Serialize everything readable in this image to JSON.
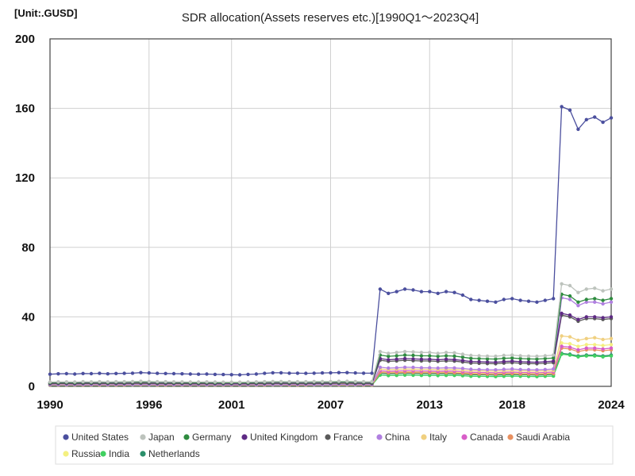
{
  "chart_data": {
    "type": "line",
    "title": "SDR allocation(Assets reserves etc.)[1990Q1～2023Q4]",
    "unit_label": "[Unit:.GUSD]",
    "xlabel": "",
    "ylabel": "",
    "xlim": [
      1990,
      2024
    ],
    "ylim": [
      0,
      200
    ],
    "x_ticks": [
      "1990",
      "1996",
      "2001",
      "2007",
      "2013",
      "2018",
      "2024"
    ],
    "y_ticks": [
      "0",
      "40",
      "80",
      "120",
      "160",
      "200"
    ],
    "grid": true,
    "legend_position": "bottom",
    "x": [
      1990,
      1990.5,
      1991,
      1991.5,
      1992,
      1992.5,
      1993,
      1993.5,
      1994,
      1994.5,
      1995,
      1995.5,
      1996,
      1996.5,
      1997,
      1997.5,
      1998,
      1998.5,
      1999,
      1999.5,
      2000,
      2000.5,
      2001,
      2001.5,
      2002,
      2002.5,
      2003,
      2003.5,
      2004,
      2004.5,
      2005,
      2005.5,
      2006,
      2006.5,
      2007,
      2007.5,
      2008,
      2008.5,
      2009,
      2009.5,
      2010,
      2010.5,
      2011,
      2011.5,
      2012,
      2012.5,
      2013,
      2013.5,
      2014,
      2014.5,
      2015,
      2015.5,
      2016,
      2016.5,
      2017,
      2017.5,
      2018,
      2018.5,
      2019,
      2019.5,
      2020,
      2020.5,
      2021,
      2021.5,
      2022,
      2022.5,
      2023,
      2023.5,
      2024
    ],
    "series": [
      {
        "name": "United States",
        "color": "#4b4f9e",
        "values": [
          7.0,
          7.2,
          7.3,
          7.1,
          7.4,
          7.3,
          7.5,
          7.2,
          7.4,
          7.5,
          7.6,
          7.9,
          7.7,
          7.5,
          7.4,
          7.3,
          7.2,
          7.1,
          7.0,
          7.1,
          6.9,
          6.8,
          6.7,
          6.6,
          6.9,
          7.1,
          7.5,
          7.8,
          7.8,
          7.6,
          7.6,
          7.5,
          7.6,
          7.7,
          7.8,
          7.9,
          7.9,
          7.7,
          7.6,
          7.6,
          56.0,
          53.5,
          54.5,
          56.0,
          55.5,
          54.5,
          54.5,
          53.5,
          54.5,
          54.0,
          52.5,
          50.0,
          49.5,
          49.0,
          48.5,
          50.0,
          50.5,
          49.5,
          49.0,
          48.5,
          49.5,
          50.5,
          161.0,
          159.0,
          148.0,
          153.5,
          155.0,
          152.0,
          154.5
        ]
      },
      {
        "name": "Japan",
        "color": "#bdc3bd",
        "values": [
          2.5,
          2.6,
          2.6,
          2.5,
          2.7,
          2.6,
          2.7,
          2.6,
          2.7,
          2.7,
          2.8,
          2.9,
          2.8,
          2.7,
          2.7,
          2.6,
          2.6,
          2.5,
          2.5,
          2.6,
          2.5,
          2.4,
          2.4,
          2.4,
          2.5,
          2.6,
          2.7,
          2.8,
          2.8,
          2.7,
          2.7,
          2.7,
          2.8,
          2.8,
          2.8,
          2.9,
          2.9,
          2.8,
          2.7,
          2.7,
          20.0,
          19.0,
          19.5,
          20.0,
          19.8,
          19.5,
          19.5,
          19.0,
          19.5,
          19.3,
          18.5,
          17.8,
          17.6,
          17.4,
          17.3,
          17.8,
          18.0,
          17.6,
          17.4,
          17.3,
          17.6,
          18.0,
          59.0,
          58.0,
          54.0,
          56.0,
          56.5,
          55.0,
          56.0
        ]
      },
      {
        "name": "Germany",
        "color": "#2e8b3f",
        "values": [
          2.2,
          2.3,
          2.3,
          2.2,
          2.4,
          2.3,
          2.4,
          2.3,
          2.4,
          2.4,
          2.5,
          2.6,
          2.5,
          2.4,
          2.4,
          2.3,
          2.3,
          2.2,
          2.2,
          2.3,
          2.2,
          2.1,
          2.1,
          2.1,
          2.2,
          2.3,
          2.4,
          2.5,
          2.5,
          2.4,
          2.4,
          2.4,
          2.5,
          2.5,
          2.5,
          2.6,
          2.6,
          2.5,
          2.4,
          2.4,
          18.0,
          17.3,
          17.6,
          18.0,
          17.8,
          17.6,
          17.6,
          17.3,
          17.6,
          17.4,
          16.8,
          16.1,
          16.0,
          15.8,
          15.7,
          16.1,
          16.3,
          16.0,
          15.8,
          15.7,
          16.0,
          16.3,
          53.0,
          52.0,
          48.5,
          50.0,
          50.5,
          49.5,
          50.5
        ]
      },
      {
        "name": "United Kingdom",
        "color": "#5e2a84",
        "values": [
          2.0,
          2.1,
          2.1,
          2.0,
          2.2,
          2.1,
          2.2,
          2.1,
          2.2,
          2.2,
          2.3,
          2.4,
          2.3,
          2.2,
          2.2,
          2.1,
          2.1,
          2.0,
          2.0,
          2.1,
          2.0,
          1.9,
          1.9,
          1.9,
          2.0,
          2.1,
          2.2,
          2.3,
          2.3,
          2.2,
          2.2,
          2.2,
          2.3,
          2.3,
          2.3,
          2.4,
          2.4,
          2.3,
          2.2,
          2.2,
          16.0,
          15.3,
          15.6,
          16.0,
          15.8,
          15.6,
          15.6,
          15.3,
          15.6,
          15.4,
          14.9,
          14.3,
          14.2,
          14.0,
          13.9,
          14.3,
          14.5,
          14.2,
          14.0,
          13.9,
          14.2,
          14.5,
          42.0,
          41.0,
          38.5,
          40.0,
          40.0,
          39.5,
          40.0
        ]
      },
      {
        "name": "France",
        "color": "#5a5a5a",
        "values": [
          1.5,
          1.6,
          1.6,
          1.5,
          1.6,
          1.6,
          1.6,
          1.6,
          1.6,
          1.6,
          1.7,
          1.8,
          1.7,
          1.6,
          1.6,
          1.6,
          1.6,
          1.5,
          1.5,
          1.6,
          1.5,
          1.5,
          1.5,
          1.5,
          1.5,
          1.6,
          1.6,
          1.7,
          1.7,
          1.6,
          1.6,
          1.6,
          1.7,
          1.7,
          1.7,
          1.8,
          1.8,
          1.7,
          1.6,
          1.6,
          15.0,
          14.4,
          14.6,
          15.0,
          14.8,
          14.6,
          14.6,
          14.4,
          14.6,
          14.5,
          14.0,
          13.4,
          13.3,
          13.1,
          13.0,
          13.4,
          13.6,
          13.3,
          13.1,
          13.0,
          13.3,
          13.6,
          41.0,
          40.0,
          37.5,
          39.0,
          39.0,
          38.5,
          39.0
        ]
      },
      {
        "name": "China",
        "color": "#b07fe0",
        "values": [
          0.9,
          0.9,
          0.9,
          0.9,
          1.0,
          0.9,
          1.0,
          0.9,
          1.0,
          1.0,
          1.0,
          1.1,
          1.0,
          1.0,
          1.0,
          0.9,
          0.9,
          0.9,
          0.9,
          0.9,
          0.9,
          0.9,
          0.9,
          0.9,
          0.9,
          0.9,
          1.0,
          1.0,
          1.0,
          1.0,
          1.0,
          1.0,
          1.0,
          1.0,
          1.0,
          1.1,
          1.1,
          1.0,
          1.0,
          1.0,
          11.0,
          10.5,
          10.7,
          11.0,
          10.9,
          10.7,
          10.7,
          10.5,
          10.7,
          10.6,
          10.3,
          9.8,
          9.7,
          9.6,
          9.5,
          9.8,
          10.0,
          9.7,
          9.6,
          9.5,
          9.7,
          10.0,
          51.0,
          50.0,
          46.5,
          48.5,
          48.5,
          47.5,
          48.5
        ]
      },
      {
        "name": "Italy",
        "color": "#f0d080",
        "values": [
          1.2,
          1.2,
          1.2,
          1.2,
          1.3,
          1.2,
          1.3,
          1.2,
          1.3,
          1.3,
          1.3,
          1.4,
          1.3,
          1.3,
          1.3,
          1.2,
          1.2,
          1.2,
          1.2,
          1.2,
          1.2,
          1.1,
          1.1,
          1.1,
          1.2,
          1.2,
          1.3,
          1.3,
          1.3,
          1.3,
          1.3,
          1.3,
          1.3,
          1.3,
          1.3,
          1.4,
          1.4,
          1.3,
          1.3,
          1.3,
          10.0,
          9.6,
          9.8,
          10.0,
          9.9,
          9.8,
          9.8,
          9.6,
          9.8,
          9.7,
          9.4,
          9.0,
          8.9,
          8.8,
          8.7,
          9.0,
          9.1,
          8.9,
          8.8,
          8.7,
          8.9,
          9.1,
          29.0,
          28.5,
          26.5,
          27.5,
          28.0,
          27.0,
          27.5
        ]
      },
      {
        "name": "Canada",
        "color": "#d85ec8",
        "values": [
          1.2,
          1.2,
          1.2,
          1.2,
          1.3,
          1.2,
          1.3,
          1.2,
          1.3,
          1.3,
          1.3,
          1.4,
          1.3,
          1.3,
          1.3,
          1.2,
          1.2,
          1.2,
          1.2,
          1.2,
          1.2,
          1.1,
          1.1,
          1.1,
          1.2,
          1.2,
          1.3,
          1.3,
          1.3,
          1.3,
          1.3,
          1.3,
          1.3,
          1.3,
          1.3,
          1.4,
          1.4,
          1.3,
          1.3,
          1.3,
          9.0,
          8.6,
          8.8,
          9.0,
          8.9,
          8.8,
          8.8,
          8.6,
          8.8,
          8.7,
          8.4,
          8.1,
          8.0,
          7.9,
          7.8,
          8.1,
          8.2,
          8.0,
          7.9,
          7.8,
          8.0,
          8.2,
          23.0,
          22.5,
          21.0,
          22.0,
          22.0,
          21.5,
          22.0
        ]
      },
      {
        "name": "Saudi Arabia",
        "color": "#e89060",
        "values": [
          0.7,
          0.7,
          0.7,
          0.7,
          0.7,
          0.7,
          0.7,
          0.7,
          0.7,
          0.7,
          0.8,
          0.8,
          0.8,
          0.7,
          0.7,
          0.7,
          0.7,
          0.7,
          0.7,
          0.7,
          0.7,
          0.7,
          0.7,
          0.7,
          0.7,
          0.7,
          0.7,
          0.8,
          0.8,
          0.7,
          0.7,
          0.7,
          0.8,
          0.8,
          0.8,
          0.8,
          0.8,
          0.8,
          0.7,
          0.7,
          8.0,
          7.7,
          7.8,
          8.0,
          7.9,
          7.8,
          7.8,
          7.7,
          7.8,
          7.7,
          7.5,
          7.2,
          7.1,
          7.0,
          6.9,
          7.2,
          7.3,
          7.1,
          7.0,
          6.9,
          7.1,
          7.3,
          22.0,
          21.5,
          20.0,
          21.0,
          21.0,
          20.5,
          21.0
        ]
      },
      {
        "name": "Russia",
        "color": "#f4f080",
        "values": [
          1.0,
          1.0,
          1.0,
          1.0,
          1.1,
          1.0,
          1.1,
          1.0,
          1.1,
          1.1,
          1.1,
          1.2,
          1.1,
          1.1,
          1.1,
          1.0,
          1.0,
          1.0,
          1.0,
          1.0,
          1.0,
          0.9,
          0.9,
          0.9,
          1.0,
          1.0,
          1.1,
          1.1,
          1.1,
          1.1,
          1.1,
          1.1,
          1.1,
          1.1,
          1.1,
          1.2,
          1.2,
          1.1,
          1.1,
          1.1,
          8.5,
          8.2,
          8.3,
          8.5,
          8.4,
          8.3,
          8.3,
          8.2,
          8.3,
          8.2,
          8.0,
          7.6,
          7.6,
          7.5,
          7.4,
          7.6,
          7.7,
          7.6,
          7.5,
          7.4,
          7.6,
          7.7,
          25.0,
          24.5,
          23.0,
          24.0,
          24.0,
          23.5,
          24.0
        ]
      },
      {
        "name": "India",
        "color": "#40d060",
        "values": [
          0.6,
          0.6,
          0.6,
          0.6,
          0.6,
          0.6,
          0.6,
          0.6,
          0.6,
          0.6,
          0.7,
          0.7,
          0.7,
          0.6,
          0.6,
          0.6,
          0.6,
          0.6,
          0.6,
          0.6,
          0.6,
          0.6,
          0.6,
          0.6,
          0.6,
          0.6,
          0.6,
          0.7,
          0.7,
          0.6,
          0.6,
          0.6,
          0.7,
          0.7,
          0.7,
          0.7,
          0.7,
          0.7,
          0.6,
          0.6,
          6.5,
          6.2,
          6.3,
          6.5,
          6.4,
          6.3,
          6.3,
          6.2,
          6.3,
          6.3,
          6.1,
          5.8,
          5.8,
          5.7,
          5.6,
          5.8,
          5.9,
          5.8,
          5.7,
          5.6,
          5.8,
          5.9,
          18.5,
          18.0,
          17.0,
          17.5,
          17.5,
          17.0,
          17.5
        ]
      },
      {
        "name": "Netherlands",
        "color": "#2a8f6a",
        "values": [
          1.3,
          1.3,
          1.3,
          1.3,
          1.4,
          1.3,
          1.4,
          1.3,
          1.4,
          1.4,
          1.4,
          1.5,
          1.4,
          1.4,
          1.4,
          1.3,
          1.3,
          1.3,
          1.3,
          1.3,
          1.3,
          1.2,
          1.2,
          1.2,
          1.3,
          1.3,
          1.4,
          1.4,
          1.4,
          1.4,
          1.4,
          1.4,
          1.4,
          1.4,
          1.4,
          1.5,
          1.5,
          1.4,
          1.4,
          1.4,
          7.5,
          7.2,
          7.3,
          7.5,
          7.4,
          7.3,
          7.3,
          7.2,
          7.3,
          7.2,
          7.0,
          6.7,
          6.7,
          6.6,
          6.5,
          6.7,
          6.8,
          6.7,
          6.6,
          6.5,
          6.7,
          6.8,
          19.0,
          18.5,
          17.5,
          18.0,
          18.0,
          17.5,
          18.0
        ]
      }
    ]
  }
}
